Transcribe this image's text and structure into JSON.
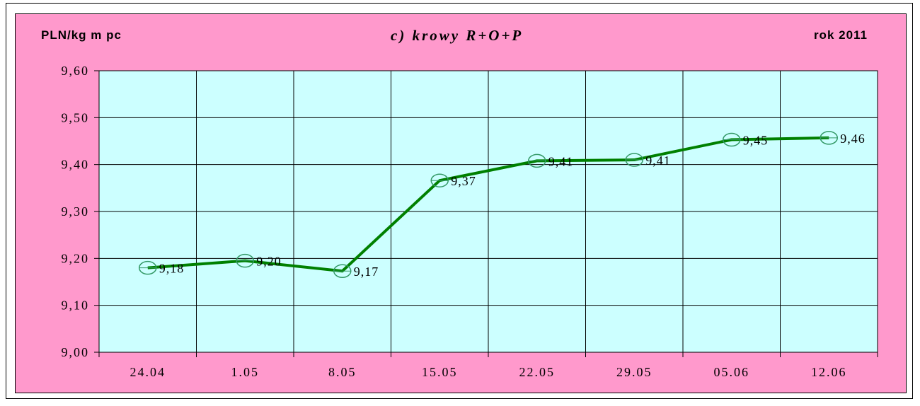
{
  "header": {
    "y_unit": "PLN/kg m pc",
    "title": "c) krowy R+O+P",
    "year_label": "rok 2011"
  },
  "colors": {
    "chart_background": "#ff99cc",
    "plot_background": "#ccffff",
    "line": "#008000",
    "marker": "#339966"
  },
  "chart_data": {
    "type": "line",
    "title": "c) krowy R+O+P",
    "ylabel": "PLN/kg m pc",
    "categories": [
      "24.04",
      "1.05",
      "8.05",
      "15.05",
      "22.05",
      "29.05",
      "05.06",
      "12.06"
    ],
    "series": [
      {
        "values": [
          9.18,
          9.195,
          9.173,
          9.366,
          9.408,
          9.41,
          9.453,
          9.457
        ],
        "labels": [
          "9,18",
          "9,20",
          "9,17",
          "9,37",
          "9,41",
          "9,41",
          "9,45",
          "9,46"
        ]
      }
    ],
    "ylim": [
      9.0,
      9.6
    ],
    "yticks": [
      "9,00",
      "9,10",
      "9,20",
      "9,30",
      "9,40",
      "9,50",
      "9,60"
    ],
    "grid": true,
    "markers": "open-circle"
  }
}
